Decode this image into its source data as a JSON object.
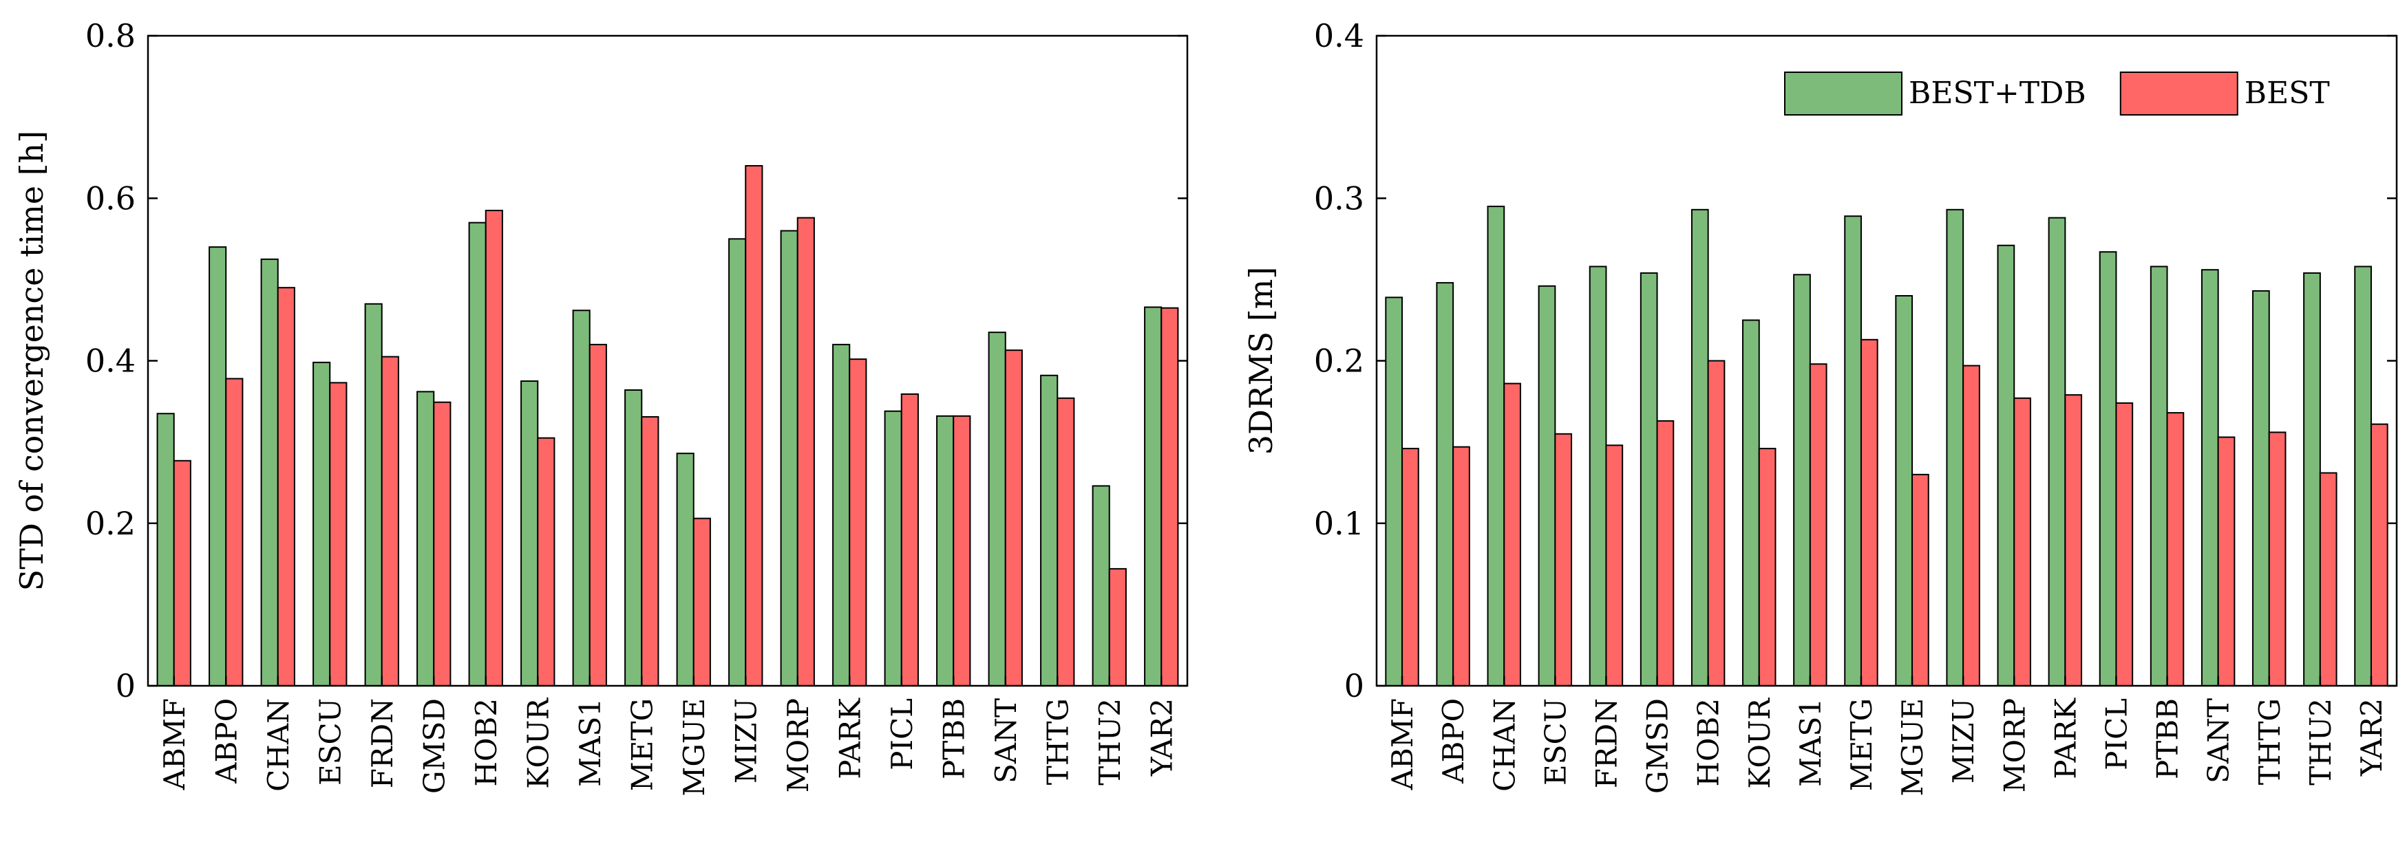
{
  "colors": {
    "series1": "#7dbb7a",
    "series2": "#ff6666",
    "stroke": "#000000"
  },
  "chart_data": [
    {
      "type": "bar",
      "title": "",
      "xlabel": "",
      "ylabel": "STD of convergence time [h]",
      "ylim": [
        0,
        0.8
      ],
      "yticks": [
        0,
        0.2,
        0.4,
        0.6,
        0.8
      ],
      "ytick_labels": [
        "0",
        "0.2",
        "0.4",
        "0.6",
        "0.8"
      ],
      "categories": [
        "ABMF",
        "ABPO",
        "CHAN",
        "ESCU",
        "FRDN",
        "GMSD",
        "HOB2",
        "KOUR",
        "MAS1",
        "METG",
        "MGUE",
        "MIZU",
        "MORP",
        "PARK",
        "PICL",
        "PTBB",
        "SANT",
        "THTG",
        "THU2",
        "YAR2"
      ],
      "series": [
        {
          "name": "BEST+TDB",
          "values": [
            0.335,
            0.54,
            0.525,
            0.398,
            0.47,
            0.362,
            0.57,
            0.375,
            0.462,
            0.364,
            0.286,
            0.55,
            0.56,
            0.42,
            0.338,
            0.332,
            0.435,
            0.382,
            0.246,
            0.466
          ]
        },
        {
          "name": "BEST",
          "values": [
            0.277,
            0.378,
            0.49,
            0.373,
            0.405,
            0.349,
            0.585,
            0.305,
            0.42,
            0.331,
            0.206,
            0.64,
            0.576,
            0.402,
            0.359,
            0.332,
            0.413,
            0.354,
            0.144,
            0.465
          ]
        }
      ],
      "legend": null,
      "grid": false
    },
    {
      "type": "bar",
      "title": "",
      "xlabel": "",
      "ylabel": "3DRMS [m]",
      "ylim": [
        0,
        0.4
      ],
      "yticks": [
        0,
        0.1,
        0.2,
        0.3,
        0.4
      ],
      "ytick_labels": [
        "0",
        "0.1",
        "0.2",
        "0.3",
        "0.4"
      ],
      "categories": [
        "ABMF",
        "ABPO",
        "CHAN",
        "ESCU",
        "FRDN",
        "GMSD",
        "HOB2",
        "KOUR",
        "MAS1",
        "METG",
        "MGUE",
        "MIZU",
        "MORP",
        "PARK",
        "PICL",
        "PTBB",
        "SANT",
        "THTG",
        "THU2",
        "YAR2"
      ],
      "series": [
        {
          "name": "BEST+TDB",
          "values": [
            0.239,
            0.248,
            0.295,
            0.246,
            0.258,
            0.254,
            0.293,
            0.225,
            0.253,
            0.289,
            0.24,
            0.293,
            0.271,
            0.288,
            0.267,
            0.258,
            0.256,
            0.243,
            0.254,
            0.258
          ]
        },
        {
          "name": "BEST",
          "values": [
            0.146,
            0.147,
            0.186,
            0.155,
            0.148,
            0.163,
            0.2,
            0.146,
            0.198,
            0.213,
            0.13,
            0.197,
            0.177,
            0.179,
            0.174,
            0.168,
            0.153,
            0.156,
            0.131,
            0.161
          ]
        }
      ],
      "legend": "top-right",
      "grid": false
    }
  ]
}
